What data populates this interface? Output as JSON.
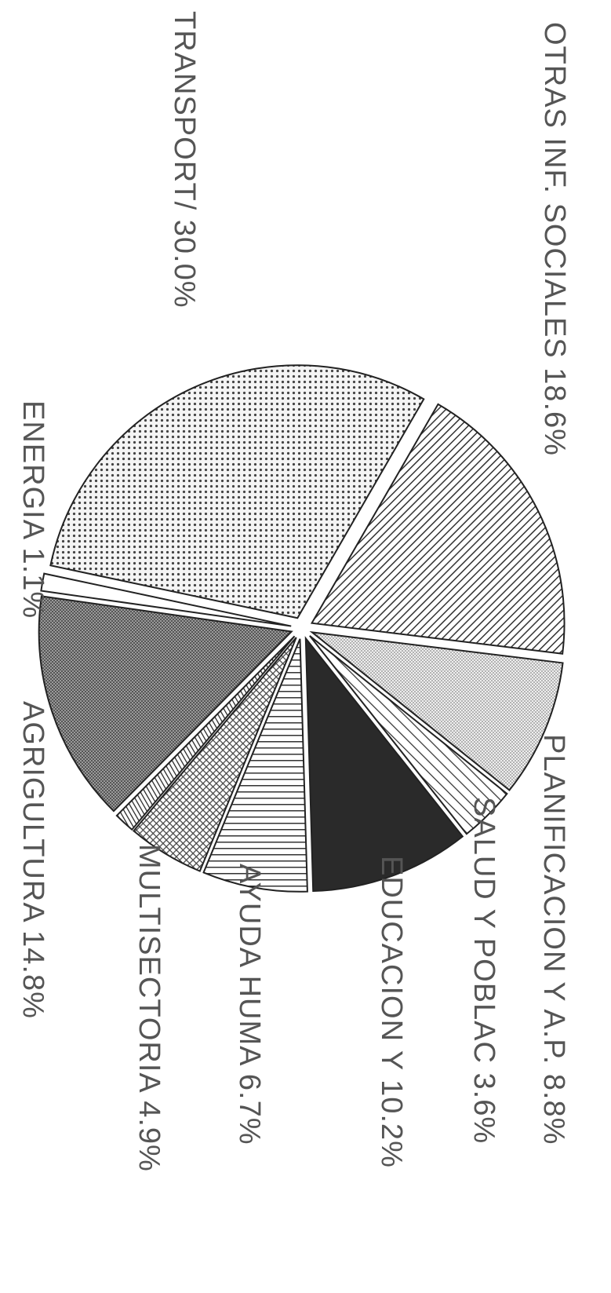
{
  "chart_data": {
    "type": "pie",
    "title": "",
    "exploded": true,
    "rotation": "rotated 90 degrees clockwise",
    "slices": [
      {
        "label": "OTRAS INF. SOCIALES",
        "value": 18.6,
        "value_label": "18.6%",
        "fill_pattern": "diagonal-lines"
      },
      {
        "label": "PLANIFICACION Y A.P.",
        "value": 8.8,
        "value_label": "8.8%",
        "fill_pattern": "light-stipple"
      },
      {
        "label": "SALUD Y POBLAC",
        "value": 3.6,
        "value_label": "3.6%",
        "fill_pattern": "diagonal-lines-sparse"
      },
      {
        "label": "EDUCACION Y",
        "value": 10.2,
        "value_label": "10.2%",
        "fill_pattern": "solid-black"
      },
      {
        "label": "AYUDA HUMA",
        "value": 6.7,
        "value_label": "6.7%",
        "fill_pattern": "horizontal-lines"
      },
      {
        "label": "MULTISECTORIA",
        "value": 4.9,
        "value_label": "4.9%",
        "fill_pattern": "crosshatch"
      },
      {
        "label": "",
        "value": 1.3,
        "value_label": "",
        "fill_pattern": "diagonal-lines-dense"
      },
      {
        "label": "AGRIGULTURA",
        "value": 14.8,
        "value_label": "14.8%",
        "fill_pattern": "dense-crosshatch"
      },
      {
        "label": "ENERGIA",
        "value": 1.1,
        "value_label": "1.1%",
        "fill_pattern": "white"
      },
      {
        "label": "TRANSPORT/",
        "value": 30.0,
        "value_label": "30.0%",
        "fill_pattern": "dots"
      }
    ],
    "colors": {
      "stroke": "#222222",
      "text": "#555555",
      "solid": "#2a2a2a"
    }
  }
}
